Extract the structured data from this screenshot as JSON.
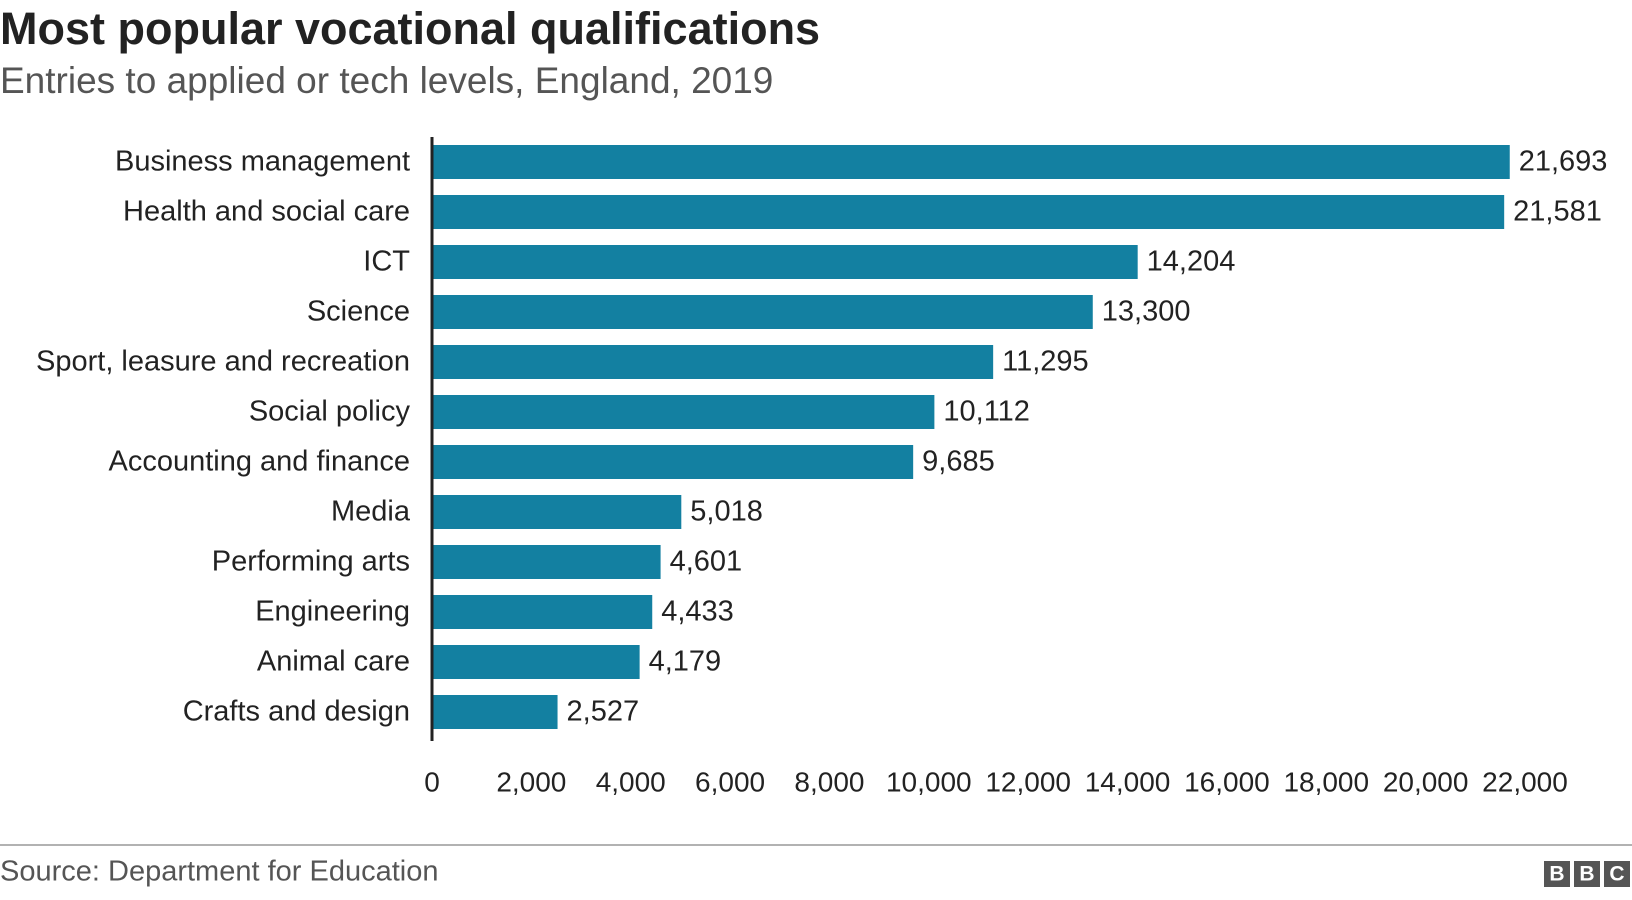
{
  "chart_data": {
    "type": "hbar",
    "title": "Most popular vocational qualifications",
    "subtitle": "Entries to applied or tech levels, England, 2019",
    "categories": [
      "Business management",
      "Health and social care",
      "ICT",
      "Science",
      "Sport, leasure and recreation",
      "Social policy",
      "Accounting and finance",
      "Media",
      "Performing arts",
      "Engineering",
      "Animal care",
      "Crafts and design"
    ],
    "values": [
      21693,
      21581,
      14204,
      13300,
      11295,
      10112,
      9685,
      5018,
      4601,
      4433,
      4179,
      2527
    ],
    "value_labels": [
      "21,693",
      "21,581",
      "14,204",
      "13,300",
      "11,295",
      "10,112",
      "9,685",
      "5,018",
      "4,601",
      "4,433",
      "4,179",
      "2,527"
    ],
    "color": "#1380a1",
    "xlim": [
      0,
      22000
    ],
    "xticks": [
      0,
      {
        "value": 2000,
        "label": "2,000"
      },
      {
        "value": 4000,
        "label": "4,000"
      },
      {
        "value": 6000,
        "label": "6,000"
      },
      {
        "value": 8000,
        "label": "8,000"
      },
      {
        "value": 10000,
        "label": "10,000"
      },
      {
        "value": 12000,
        "label": "12,000"
      },
      {
        "value": 14000,
        "label": "14,000"
      },
      {
        "value": 16000,
        "label": "16,000"
      },
      {
        "value": 18000,
        "label": "18,000"
      },
      {
        "value": 20000,
        "label": "20,000"
      },
      {
        "value": 22000,
        "label": "22,000"
      }
    ],
    "grid": false,
    "source": "Source: Department for Education",
    "logo": [
      "B",
      "B",
      "C"
    ]
  }
}
